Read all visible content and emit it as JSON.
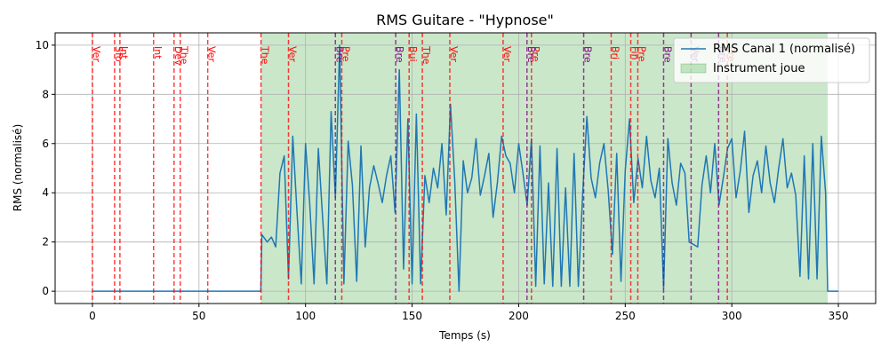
{
  "chart_data": {
    "type": "line",
    "title": "RMS Guitare - \"Hypnose\"",
    "x_label": "Temps (s)",
    "y_label": "RMS (normalisé)",
    "xlim": [
      -17.5,
      367.5
    ],
    "ylim": [
      -0.5,
      10.5
    ],
    "xticks": [
      0,
      50,
      100,
      150,
      200,
      250,
      300,
      350
    ],
    "yticks": [
      0,
      2,
      4,
      6,
      8,
      10
    ],
    "grid": true,
    "legend": "upper right",
    "x": [
      0,
      79,
      79.5,
      82,
      84,
      86,
      88,
      90,
      92,
      94,
      96,
      98,
      100,
      102,
      104,
      106,
      108,
      110,
      112,
      114,
      116,
      118,
      120,
      122,
      124,
      126,
      128,
      130,
      132,
      134,
      136,
      138,
      140,
      142,
      144,
      146,
      148,
      150,
      152,
      154,
      156,
      158,
      160,
      162,
      164,
      166,
      168,
      170,
      172,
      174,
      176,
      178,
      180,
      182,
      184,
      186,
      188,
      190,
      192,
      194,
      196,
      198,
      200,
      202,
      204,
      206,
      208,
      210,
      212,
      214,
      216,
      218,
      220,
      222,
      224,
      226,
      228,
      230,
      232,
      234,
      236,
      238,
      240,
      242,
      244,
      246,
      248,
      250,
      252,
      254,
      256,
      258,
      260,
      262,
      264,
      266,
      268,
      270,
      272,
      274,
      276,
      278,
      280,
      282,
      284,
      286,
      288,
      290,
      292,
      294,
      296,
      298,
      300,
      302,
      304,
      306,
      308,
      310,
      312,
      314,
      316,
      318,
      320,
      322,
      324,
      326,
      328,
      330,
      332,
      334,
      336,
      338,
      340,
      342,
      344,
      345,
      350
    ],
    "series": [
      {
        "name": "RMS Canal 1 (normalisé)",
        "color": "#1f77b4",
        "values": [
          0,
          0,
          2.3,
          2.0,
          2.2,
          1.8,
          4.8,
          5.5,
          0.5,
          6.3,
          3.2,
          0.3,
          6.0,
          3.5,
          0.3,
          5.8,
          3.0,
          0.3,
          7.3,
          3.8,
          10.0,
          0.3,
          6.1,
          4.3,
          0.4,
          5.9,
          1.8,
          4.2,
          5.1,
          4.4,
          3.6,
          4.7,
          5.5,
          3.2,
          9.0,
          0.9,
          7.0,
          0.3,
          7.2,
          0.3,
          4.7,
          3.6,
          5.0,
          4.2,
          6.0,
          3.1,
          7.6,
          4.5,
          0.0,
          5.3,
          4.0,
          4.6,
          6.2,
          3.9,
          4.7,
          5.6,
          3.0,
          4.4,
          6.3,
          5.5,
          5.2,
          4.0,
          6.0,
          4.8,
          3.5,
          6.2,
          0.2,
          5.9,
          0.3,
          4.4,
          0.2,
          5.8,
          0.2,
          4.2,
          0.2,
          5.6,
          0.2,
          3.9,
          7.1,
          4.6,
          3.8,
          5.2,
          6.0,
          4.1,
          1.5,
          5.6,
          0.4,
          4.9,
          7.0,
          3.6,
          5.4,
          4.2,
          6.3,
          4.5,
          3.8,
          5.0,
          0.1,
          6.2,
          4.4,
          3.5,
          5.2,
          4.8,
          2.0,
          1.9,
          1.8,
          4.3,
          5.5,
          4.0,
          6.0,
          3.5,
          4.6,
          5.8,
          6.2,
          3.8,
          4.9,
          6.5,
          3.2,
          4.7,
          5.3,
          4.0,
          5.9,
          4.4,
          3.6,
          5.0,
          6.2,
          4.2,
          4.8,
          3.9,
          0.6,
          5.5,
          0.5,
          6.0,
          0.5,
          6.3,
          4.0,
          0.0,
          0.0
        ]
      }
    ],
    "span": {
      "label": "Instrument joue",
      "start": 79,
      "end": 345,
      "color": "#2ca02c"
    },
    "annotations": [
      {
        "x": 0,
        "label": "Ver",
        "color": "red"
      },
      {
        "x": 10.4,
        "label": "Sfo",
        "color": "red"
      },
      {
        "x": 12.9,
        "label": "Int",
        "color": "red"
      },
      {
        "x": 28.7,
        "label": "Int",
        "color": "red"
      },
      {
        "x": 38.3,
        "label": "Dev",
        "color": "red"
      },
      {
        "x": 41.2,
        "label": "The",
        "color": "red"
      },
      {
        "x": 54.1,
        "label": "Ver",
        "color": "red"
      },
      {
        "x": 79.1,
        "label": "The",
        "color": "red"
      },
      {
        "x": 92,
        "label": "Ver",
        "color": "red"
      },
      {
        "x": 114,
        "label": "Bre",
        "color": "purple"
      },
      {
        "x": 117,
        "label": "Pre",
        "color": "red"
      },
      {
        "x": 142.3,
        "label": "Bre",
        "color": "purple"
      },
      {
        "x": 148.6,
        "label": "Bui",
        "color": "red"
      },
      {
        "x": 154.8,
        "label": "The",
        "color": "red"
      },
      {
        "x": 167.7,
        "label": "Ver",
        "color": "red"
      },
      {
        "x": 192.7,
        "label": "Ver",
        "color": "red"
      },
      {
        "x": 203.9,
        "label": "Bre",
        "color": "purple"
      },
      {
        "x": 206,
        "label": "Pre",
        "color": "red"
      },
      {
        "x": 230.5,
        "label": "Bre",
        "color": "purple"
      },
      {
        "x": 243.4,
        "label": "Bri",
        "color": "red"
      },
      {
        "x": 252.6,
        "label": "Fin",
        "color": "red"
      },
      {
        "x": 255.9,
        "label": "Pre",
        "color": "red"
      },
      {
        "x": 268,
        "label": "Bre",
        "color": "purple"
      },
      {
        "x": 280.9,
        "label": "Ver",
        "color": "purple"
      },
      {
        "x": 293.8,
        "label": "Bre",
        "color": "purple"
      },
      {
        "x": 297.9,
        "label": "Pre",
        "color": "red"
      }
    ]
  }
}
